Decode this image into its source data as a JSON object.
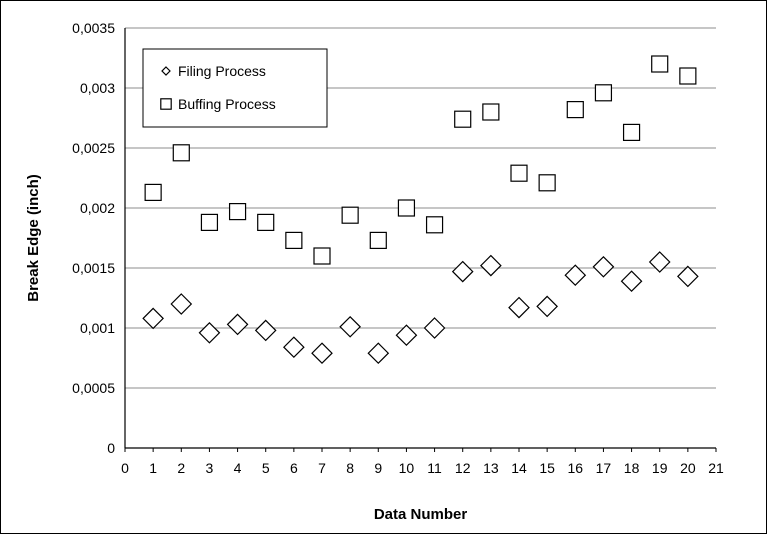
{
  "chart_data": {
    "type": "scatter",
    "title": "",
    "xlabel": "Data Number",
    "ylabel": "Break Edge (inch)",
    "xlim": [
      0,
      21
    ],
    "ylim": [
      0,
      0.0035
    ],
    "x_ticks": [
      "0",
      "1",
      "2",
      "3",
      "4",
      "5",
      "6",
      "7",
      "8",
      "9",
      "10",
      "11",
      "12",
      "13",
      "14",
      "15",
      "16",
      "17",
      "18",
      "19",
      "20",
      "21"
    ],
    "y_ticks": [
      "0",
      "0,0005",
      "0,001",
      "0,0015",
      "0,002",
      "0,0025",
      "0,003",
      "0,0035"
    ],
    "grid": "horizontal",
    "legend_position": "top-left",
    "series": [
      {
        "name": "Filing Process",
        "marker": "diamond",
        "x": [
          1,
          2,
          3,
          4,
          5,
          6,
          7,
          8,
          9,
          10,
          11,
          12,
          13,
          14,
          15,
          16,
          17,
          18,
          19,
          20
        ],
        "y": [
          0.00108,
          0.0012,
          0.00096,
          0.00103,
          0.00098,
          0.00084,
          0.00079,
          0.00101,
          0.00079,
          0.00094,
          0.001,
          0.00147,
          0.00152,
          0.00117,
          0.00118,
          0.00144,
          0.00151,
          0.00139,
          0.00155,
          0.00143
        ]
      },
      {
        "name": "Buffing Process",
        "marker": "square",
        "x": [
          1,
          2,
          3,
          4,
          5,
          6,
          7,
          8,
          9,
          10,
          11,
          12,
          13,
          14,
          15,
          16,
          17,
          18,
          19,
          20
        ],
        "y": [
          0.00213,
          0.00246,
          0.00188,
          0.00197,
          0.00188,
          0.00173,
          0.0016,
          0.00194,
          0.00173,
          0.002,
          0.00186,
          0.00274,
          0.0028,
          0.00229,
          0.00221,
          0.00282,
          0.00296,
          0.00263,
          0.0032,
          0.0031
        ]
      }
    ]
  }
}
